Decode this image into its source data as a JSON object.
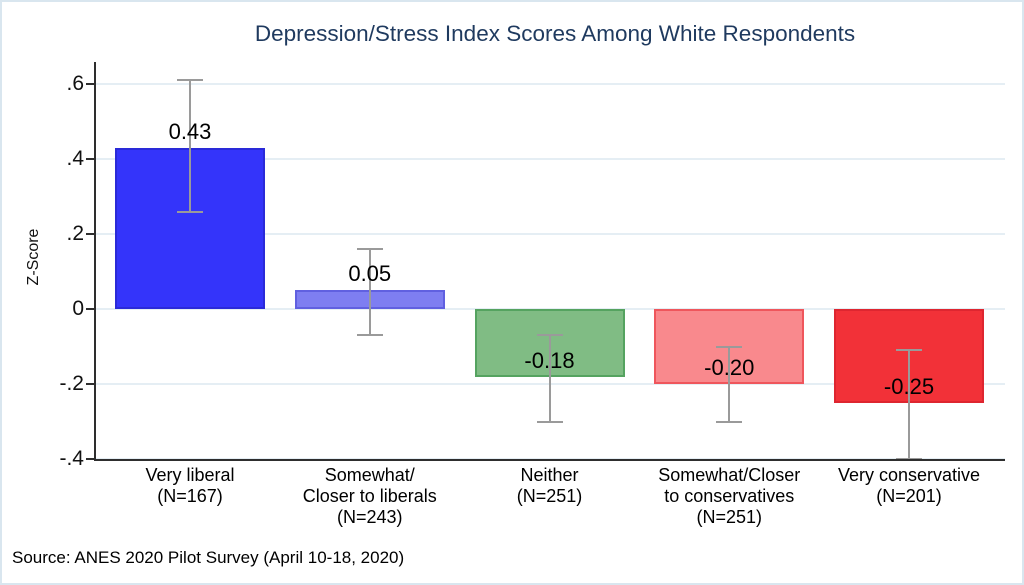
{
  "title": "Depression/Stress Index Scores Among White Respondents",
  "source_note": "Source: ANES 2020 Pilot Survey (April 10-18, 2020)",
  "colors": {
    "title_text": "#1f3a5f",
    "axis": "#2e2e2e",
    "gridline": "#e5eef4",
    "error_bar": "#9a9a9a",
    "background": "#ffffff",
    "frame_border": "#d9e6ef"
  },
  "chart_data": {
    "type": "bar",
    "title": "Depression/Stress Index Scores Among White Respondents",
    "xlabel": "",
    "ylabel": "Z-Score",
    "ylim": [
      -0.4,
      0.66
    ],
    "yticks": [
      0.6,
      0.4,
      0.2,
      0,
      -0.2,
      -0.4
    ],
    "ytick_labels": [
      ".6",
      ".4",
      ".2",
      "0",
      "-.2",
      "-.4"
    ],
    "grid": true,
    "legend_position": "none",
    "categories": [
      "Very liberal (N=167)",
      "Somewhat/Closer to liberals (N=243)",
      "Neither (N=251)",
      "Somewhat/Closer to conservatives (N=251)",
      "Very conservative (N=201)"
    ],
    "bars": [
      {
        "category_lines": [
          "Very liberal",
          "(N=167)"
        ],
        "n": 167,
        "value": 0.43,
        "value_label": "0.43",
        "ci_low": 0.26,
        "ci_high": 0.61,
        "fill": "#3434fa",
        "border": "#2a2ad8"
      },
      {
        "category_lines": [
          "Somewhat/",
          "Closer to liberals",
          "(N=243)"
        ],
        "n": 243,
        "value": 0.05,
        "value_label": "0.05",
        "ci_low": -0.07,
        "ci_high": 0.16,
        "fill": "#7e7ef1",
        "border": "#6060e0"
      },
      {
        "category_lines": [
          "Neither",
          "(N=251)"
        ],
        "n": 251,
        "value": -0.18,
        "value_label": "-0.18",
        "ci_low": -0.3,
        "ci_high": -0.07,
        "fill": "#80bc84",
        "border": "#55a360"
      },
      {
        "category_lines": [
          "Somewhat/Closer",
          "to conservatives",
          "(N=251)"
        ],
        "n": 251,
        "value": -0.2,
        "value_label": "-0.20",
        "ci_low": -0.3,
        "ci_high": -0.1,
        "fill": "#f9898d",
        "border": "#ef565c"
      },
      {
        "category_lines": [
          "Very conservative",
          "(N=201)"
        ],
        "n": 201,
        "value": -0.25,
        "value_label": "-0.25",
        "ci_low": -0.4,
        "ci_high": -0.11,
        "fill": "#f23138",
        "border": "#de2630"
      }
    ]
  }
}
